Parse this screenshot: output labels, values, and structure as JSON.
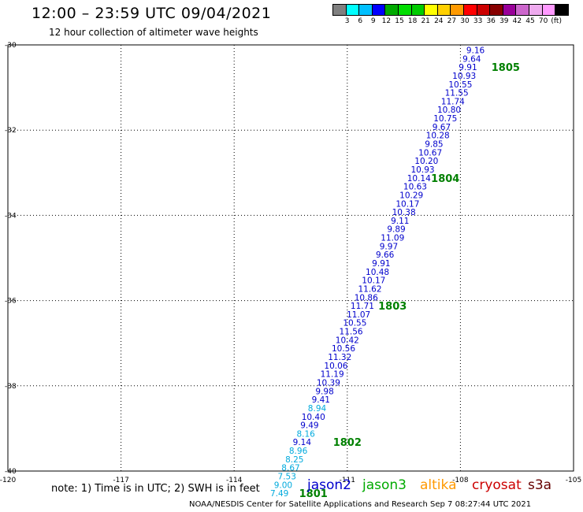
{
  "header": {
    "title": "12:00 – 23:59 UTC 09/04/2021",
    "subtitle": "12 hour collection of altimeter wave heights"
  },
  "colorbar": {
    "colors": [
      "#808080",
      "#00ffff",
      "#00c0ff",
      "#0000ff",
      "#00aa00",
      "#00dd00",
      "#00cc00",
      "#ffff00",
      "#ffd000",
      "#ff9a00",
      "#ff0000",
      "#cc0000",
      "#880000",
      "#990099",
      "#cc66cc",
      "#eeaaee",
      "#ff99ff",
      "#000000"
    ],
    "labels": [
      "3",
      "6",
      "9",
      "12",
      "15",
      "18",
      "21",
      "24",
      "27",
      "30",
      "33",
      "36",
      "39",
      "42",
      "45",
      "70",
      "(ft)"
    ]
  },
  "chart_data": {
    "type": "scatter",
    "title": "12:00 – 23:59 UTC 09/04/2021",
    "subtitle": "12 hour collection of altimeter wave heights",
    "xlim": [
      -120,
      -105
    ],
    "ylim": [
      -40,
      -30
    ],
    "xticks": [
      "-120",
      "-117",
      "-114",
      "-111",
      "-108",
      "-105"
    ],
    "yticks": [
      "-30",
      "-32",
      "-34",
      "-36",
      "-38",
      "-40"
    ],
    "grid": true,
    "points": [
      {
        "x": -107.6,
        "y": -30.12,
        "label": "9.16",
        "color": "#0000cc"
      },
      {
        "x": -107.7,
        "y": -30.32,
        "label": "9.64",
        "color": "#0000cc"
      },
      {
        "x": -107.8,
        "y": -30.52,
        "label": "9.91",
        "color": "#0000cc"
      },
      {
        "x": -107.9,
        "y": -30.72,
        "label": "10.93",
        "color": "#0000cc"
      },
      {
        "x": -108.0,
        "y": -30.92,
        "label": "10.55",
        "color": "#0000cc"
      },
      {
        "x": -108.1,
        "y": -31.12,
        "label": "11.55",
        "color": "#0000cc"
      },
      {
        "x": -108.2,
        "y": -31.32,
        "label": "11.74",
        "color": "#0000cc"
      },
      {
        "x": -108.3,
        "y": -31.52,
        "label": "10.80",
        "color": "#0000cc"
      },
      {
        "x": -108.4,
        "y": -31.72,
        "label": "10.75",
        "color": "#0000cc"
      },
      {
        "x": -108.5,
        "y": -31.92,
        "label": "9.67",
        "color": "#0000cc"
      },
      {
        "x": -108.6,
        "y": -32.12,
        "label": "10.28",
        "color": "#0000cc"
      },
      {
        "x": -108.7,
        "y": -32.32,
        "label": "9.85",
        "color": "#0000cc"
      },
      {
        "x": -108.8,
        "y": -32.52,
        "label": "10.67",
        "color": "#0000cc"
      },
      {
        "x": -108.9,
        "y": -32.72,
        "label": "10.20",
        "color": "#0000cc"
      },
      {
        "x": -109.0,
        "y": -32.92,
        "label": "10.93",
        "color": "#0000cc"
      },
      {
        "x": -109.1,
        "y": -33.12,
        "label": "10.14",
        "color": "#0000cc"
      },
      {
        "x": -109.2,
        "y": -33.32,
        "label": "10.63",
        "color": "#0000cc"
      },
      {
        "x": -109.3,
        "y": -33.52,
        "label": "10.29",
        "color": "#0000cc"
      },
      {
        "x": -109.4,
        "y": -33.72,
        "label": "10.17",
        "color": "#0000cc"
      },
      {
        "x": -109.5,
        "y": -33.92,
        "label": "10.38",
        "color": "#0000cc"
      },
      {
        "x": -109.6,
        "y": -34.12,
        "label": "9.11",
        "color": "#0000cc"
      },
      {
        "x": -109.7,
        "y": -34.32,
        "label": "9.89",
        "color": "#0000cc"
      },
      {
        "x": -109.8,
        "y": -34.52,
        "label": "11.09",
        "color": "#0000cc"
      },
      {
        "x": -109.9,
        "y": -34.72,
        "label": "9.97",
        "color": "#0000cc"
      },
      {
        "x": -110.0,
        "y": -34.92,
        "label": "9.66",
        "color": "#0000cc"
      },
      {
        "x": -110.1,
        "y": -35.12,
        "label": "9.91",
        "color": "#0000cc"
      },
      {
        "x": -110.2,
        "y": -35.32,
        "label": "10.48",
        "color": "#0000cc"
      },
      {
        "x": -110.3,
        "y": -35.52,
        "label": "10.17",
        "color": "#0000cc"
      },
      {
        "x": -110.4,
        "y": -35.72,
        "label": "11.62",
        "color": "#0000cc"
      },
      {
        "x": -110.5,
        "y": -35.92,
        "label": "10.86",
        "color": "#0000cc"
      },
      {
        "x": -110.6,
        "y": -36.12,
        "label": "11.71",
        "color": "#0000cc"
      },
      {
        "x": -110.7,
        "y": -36.32,
        "label": "11.07",
        "color": "#0000cc"
      },
      {
        "x": -110.8,
        "y": -36.52,
        "label": "10.55",
        "color": "#0000cc"
      },
      {
        "x": -110.9,
        "y": -36.72,
        "label": "11.56",
        "color": "#0000cc"
      },
      {
        "x": -111.0,
        "y": -36.92,
        "label": "10.42",
        "color": "#0000cc"
      },
      {
        "x": -111.1,
        "y": -37.12,
        "label": "10.56",
        "color": "#0000cc"
      },
      {
        "x": -111.2,
        "y": -37.32,
        "label": "11.32",
        "color": "#0000cc"
      },
      {
        "x": -111.3,
        "y": -37.52,
        "label": "10.06",
        "color": "#0000cc"
      },
      {
        "x": -111.4,
        "y": -37.72,
        "label": "11.19",
        "color": "#0000cc"
      },
      {
        "x": -111.5,
        "y": -37.92,
        "label": "10.39",
        "color": "#0000cc"
      },
      {
        "x": -111.6,
        "y": -38.12,
        "label": "9.98",
        "color": "#0000cc"
      },
      {
        "x": -111.7,
        "y": -38.32,
        "label": "9.41",
        "color": "#0000cc"
      },
      {
        "x": -111.8,
        "y": -38.52,
        "label": "8.94",
        "color": "#00aadd"
      },
      {
        "x": -111.9,
        "y": -38.72,
        "label": "10.40",
        "color": "#0000cc"
      },
      {
        "x": -112.0,
        "y": -38.92,
        "label": "9.49",
        "color": "#0000cc"
      },
      {
        "x": -112.1,
        "y": -39.12,
        "label": "8.16",
        "color": "#00aadd"
      },
      {
        "x": -112.2,
        "y": -39.32,
        "label": "9.14",
        "color": "#0000cc"
      },
      {
        "x": -112.3,
        "y": -39.52,
        "label": "8.96",
        "color": "#00aadd"
      },
      {
        "x": -112.4,
        "y": -39.72,
        "label": "8.25",
        "color": "#00aadd"
      },
      {
        "x": -112.5,
        "y": -39.92,
        "label": "8.67",
        "color": "#00aadd"
      },
      {
        "x": -112.6,
        "y": -40.12,
        "label": "7.53",
        "color": "#00aadd"
      },
      {
        "x": -112.7,
        "y": -40.32,
        "label": "9.00",
        "color": "#00aadd"
      },
      {
        "x": -112.8,
        "y": -40.52,
        "label": "7.49",
        "color": "#00aadd"
      }
    ],
    "annotations": [
      {
        "x": -106.8,
        "y": -30.52,
        "label": "1805",
        "color": "#008000"
      },
      {
        "x": -108.4,
        "y": -33.12,
        "label": "1804",
        "color": "#008000"
      },
      {
        "x": -109.8,
        "y": -36.12,
        "label": "1803",
        "color": "#008000"
      },
      {
        "x": -111.0,
        "y": -39.32,
        "label": "1802",
        "color": "#008000"
      },
      {
        "x": -111.9,
        "y": -40.52,
        "label": "1801",
        "color": "#008000"
      }
    ]
  },
  "note": "note: 1) Time is in UTC; 2) SWH is in feet",
  "satellites": [
    {
      "name": "jason2",
      "color": "#0000cc"
    },
    {
      "name": "jason3",
      "color": "#00aa00"
    },
    {
      "name": "altika",
      "color": "#ff9900"
    },
    {
      "name": "cryosat",
      "color": "#cc0000"
    },
    {
      "name": "s3a",
      "color": "#660000"
    }
  ],
  "footer": "NOAA/NESDIS Center for Satellite Applications and Research   Sep  7 08:27:44 UTC 2021"
}
